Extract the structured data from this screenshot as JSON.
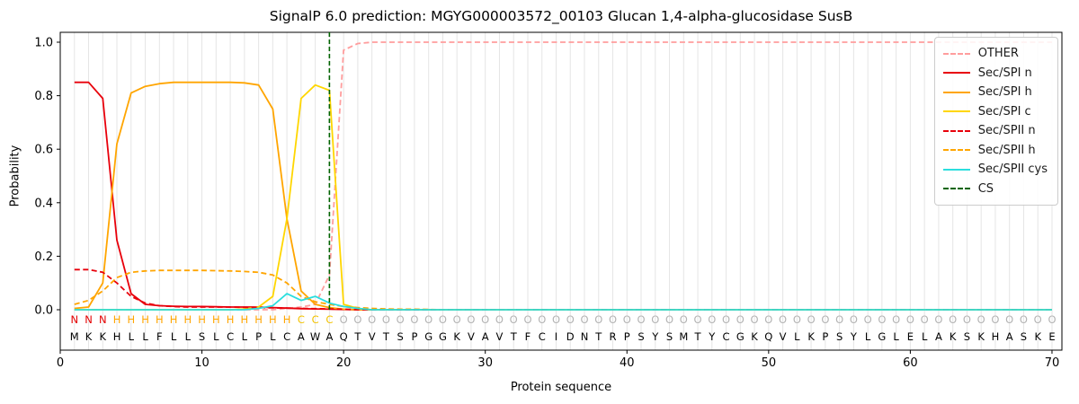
{
  "chart_data": {
    "type": "line",
    "title": "SignalP 6.0 prediction: MGYG000003572_00103 Glucan 1,4-alpha-glucosidase SusB",
    "xlabel": "Protein sequence",
    "ylabel": "Probability",
    "xlim": [
      0,
      70.7
    ],
    "ylim": [
      -0.15,
      1.04
    ],
    "x_ticks": [
      0,
      10,
      20,
      30,
      40,
      50,
      60,
      70
    ],
    "y_ticks": [
      0.0,
      0.2,
      0.4,
      0.6,
      0.8,
      1.0
    ],
    "grid": true,
    "legend_position": "upper right",
    "sequence": "MKKHLLFLLSLCLPLCAWAQTVTSPGGKVAVTFCIDNTRPSYSMTYCGKQVLKPSYLGLELAKSKHASKE",
    "regions": "NNNHHHHHHHHHHHHHCCCOOOOOOOOOOOOOOOOOOOOOOOOOOOOOOOOOOOOOOOOOOOOOOOOOO",
    "region_colors": {
      "N": "#e40000",
      "H": "#ffa500",
      "C": "#f2c200",
      "O": "#b3b3b3"
    },
    "cs_label": "CS",
    "cs_color": "#006400",
    "cs_position": 19,
    "series": [
      {
        "name": "OTHER",
        "color": "#ff9d9d",
        "dash": true,
        "values": [
          0,
          0,
          0,
          0,
          0,
          0,
          0,
          0,
          0,
          0,
          0,
          0,
          0,
          0,
          0,
          0.005,
          0.01,
          0.02,
          0.13,
          0.97,
          0.995,
          1,
          1,
          1,
          1,
          1,
          1,
          1,
          1,
          1,
          1,
          1,
          1,
          1,
          1,
          1,
          1,
          1,
          1,
          1,
          1,
          1,
          1,
          1,
          1,
          1,
          1,
          1,
          1,
          1,
          1,
          1,
          1,
          1,
          1,
          1,
          1,
          1,
          1,
          1,
          1,
          1,
          1,
          1,
          1,
          1,
          1,
          1,
          1,
          1
        ]
      },
      {
        "name": "Sec/SPI n",
        "color": "#e8000b",
        "dash": false,
        "values": [
          0.85,
          0.85,
          0.79,
          0.26,
          0.06,
          0.02,
          0.015,
          0.013,
          0.012,
          0.012,
          0.011,
          0.01,
          0.01,
          0.01,
          0.008,
          0.006,
          0.004,
          0.003,
          0.002,
          0.001,
          0,
          0,
          0,
          0,
          0,
          0,
          0,
          0,
          0,
          0,
          0,
          0,
          0,
          0,
          0,
          0,
          0,
          0,
          0,
          0,
          0,
          0,
          0,
          0,
          0,
          0,
          0,
          0,
          0,
          0,
          0,
          0,
          0,
          0,
          0,
          0,
          0,
          0,
          0,
          0,
          0,
          0,
          0,
          0,
          0,
          0,
          0,
          0,
          0,
          0
        ]
      },
      {
        "name": "Sec/SPI h",
        "color": "#ffa500",
        "dash": false,
        "values": [
          0.005,
          0.01,
          0.1,
          0.62,
          0.81,
          0.835,
          0.845,
          0.85,
          0.85,
          0.85,
          0.85,
          0.85,
          0.848,
          0.84,
          0.75,
          0.34,
          0.07,
          0.02,
          0.008,
          0.002,
          0,
          0,
          0,
          0,
          0,
          0,
          0,
          0,
          0,
          0,
          0,
          0,
          0,
          0,
          0,
          0,
          0,
          0,
          0,
          0,
          0,
          0,
          0,
          0,
          0,
          0,
          0,
          0,
          0,
          0,
          0,
          0,
          0,
          0,
          0,
          0,
          0,
          0,
          0,
          0,
          0,
          0,
          0,
          0,
          0,
          0,
          0,
          0,
          0,
          0
        ]
      },
      {
        "name": "Sec/SPI c",
        "color": "#ffd600",
        "dash": false,
        "values": [
          0,
          0,
          0,
          0,
          0,
          0,
          0,
          0,
          0,
          0,
          0,
          0,
          0.003,
          0.01,
          0.05,
          0.34,
          0.79,
          0.84,
          0.82,
          0.02,
          0.005,
          0,
          0,
          0,
          0,
          0,
          0,
          0,
          0,
          0,
          0,
          0,
          0,
          0,
          0,
          0,
          0,
          0,
          0,
          0,
          0,
          0,
          0,
          0,
          0,
          0,
          0,
          0,
          0,
          0,
          0,
          0,
          0,
          0,
          0,
          0,
          0,
          0,
          0,
          0,
          0,
          0,
          0,
          0,
          0,
          0,
          0,
          0,
          0,
          0
        ]
      },
      {
        "name": "Sec/SPII n",
        "color": "#e8000b",
        "dash": true,
        "values": [
          0.15,
          0.15,
          0.14,
          0.1,
          0.05,
          0.025,
          0.015,
          0.012,
          0.01,
          0.01,
          0.01,
          0.01,
          0.009,
          0.008,
          0.007,
          0.006,
          0.005,
          0.004,
          0.003,
          0.002,
          0,
          0,
          0,
          0,
          0,
          0,
          0,
          0,
          0,
          0,
          0,
          0,
          0,
          0,
          0,
          0,
          0,
          0,
          0,
          0,
          0,
          0,
          0,
          0,
          0,
          0,
          0,
          0,
          0,
          0,
          0,
          0,
          0,
          0,
          0,
          0,
          0,
          0,
          0,
          0,
          0,
          0,
          0,
          0,
          0,
          0,
          0,
          0,
          0,
          0
        ]
      },
      {
        "name": "Sec/SPII h",
        "color": "#ffa500",
        "dash": true,
        "values": [
          0.02,
          0.035,
          0.07,
          0.12,
          0.14,
          0.145,
          0.147,
          0.147,
          0.147,
          0.147,
          0.146,
          0.145,
          0.143,
          0.14,
          0.13,
          0.1,
          0.05,
          0.03,
          0.02,
          0.012,
          0.008,
          0.005,
          0.003,
          0.002,
          0.002,
          0.001,
          0,
          0,
          0,
          0,
          0,
          0,
          0,
          0,
          0,
          0,
          0,
          0,
          0,
          0,
          0,
          0,
          0,
          0,
          0,
          0,
          0,
          0,
          0,
          0,
          0,
          0,
          0,
          0,
          0,
          0,
          0,
          0,
          0,
          0,
          0,
          0,
          0,
          0,
          0,
          0,
          0,
          0,
          0,
          0
        ]
      },
      {
        "name": "Sec/SPII cys",
        "color": "#2bdede",
        "dash": false,
        "values": [
          0,
          0,
          0,
          0,
          0,
          0,
          0,
          0,
          0,
          0,
          0,
          0,
          0,
          0.005,
          0.015,
          0.06,
          0.035,
          0.05,
          0.025,
          0.012,
          0.005,
          0,
          0,
          0,
          0,
          0,
          0,
          0,
          0,
          0,
          0,
          0,
          0,
          0,
          0,
          0,
          0,
          0,
          0,
          0,
          0,
          0,
          0,
          0,
          0,
          0,
          0,
          0,
          0,
          0,
          0,
          0,
          0,
          0,
          0,
          0,
          0,
          0,
          0,
          0,
          0,
          0,
          0,
          0,
          0,
          0,
          0,
          0,
          0,
          0
        ]
      }
    ]
  }
}
